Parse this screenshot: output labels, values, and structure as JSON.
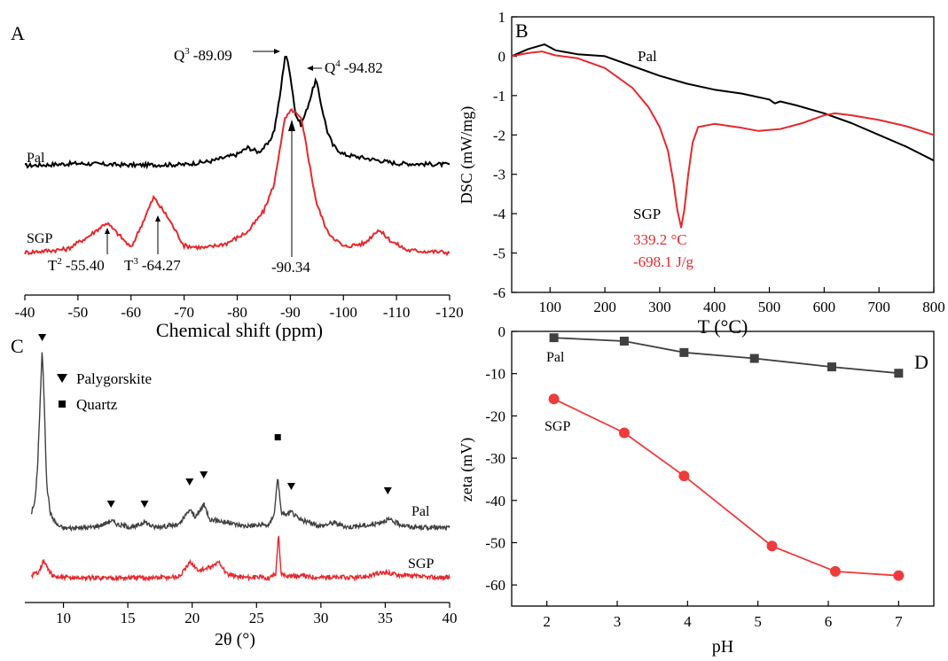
{
  "colors": {
    "black": "#000000",
    "red": "#e8282d",
    "darkgray": "#404040",
    "red_marker": "#ef3b3b"
  },
  "chart_data": [
    {
      "panel": "A",
      "type": "line",
      "xlabel": "Chemical shift (ppm)",
      "xlim": [
        -40,
        -120
      ],
      "x_reversed": true,
      "xticks": [
        -40,
        -50,
        -60,
        -70,
        -80,
        -90,
        -100,
        -110,
        -120
      ],
      "xtick_labels": [
        "-40",
        "-50",
        "-60",
        "-70",
        "-80",
        "-90",
        "-100",
        "-110",
        "-120"
      ],
      "series": [
        {
          "name": "Pal",
          "color": "#000000",
          "x": [
            -40,
            -50,
            -60,
            -70,
            -75,
            -80,
            -82,
            -84,
            -86,
            -87,
            -88,
            -89.09,
            -90,
            -91,
            -92,
            -93,
            -94.82,
            -96,
            -97,
            -98,
            -100,
            -105,
            -110,
            -120
          ],
          "y": [
            0,
            0.2,
            0.05,
            0.1,
            0.4,
            1.0,
            1.6,
            1.2,
            2.0,
            3.2,
            6.0,
            10.0,
            8.0,
            4.5,
            3.6,
            4.8,
            7.6,
            5.0,
            3.0,
            1.8,
            1.0,
            0.6,
            0.2,
            0.1
          ]
        },
        {
          "name": "SGP",
          "color": "#e8282d",
          "x": [
            -40,
            -48,
            -52,
            -55.4,
            -58,
            -60,
            -62,
            -64.27,
            -67,
            -70,
            -74,
            -78,
            -82,
            -85,
            -87,
            -88,
            -89,
            -90.34,
            -92,
            -93,
            -94,
            -95,
            -97,
            -100,
            -104,
            -106.5,
            -109,
            -112,
            -120
          ],
          "y": [
            0,
            0.3,
            1.4,
            2.6,
            1.4,
            0.4,
            2.4,
            4.8,
            3.0,
            0.6,
            0.4,
            0.8,
            1.8,
            3.6,
            6.0,
            9.0,
            11.6,
            12.4,
            11.6,
            9.4,
            6.6,
            4.2,
            1.8,
            0.5,
            0.8,
            2.0,
            1.0,
            0.2,
            0
          ]
        }
      ],
      "annotations": [
        {
          "sup": "3",
          "pre": "Q",
          "text": "-89.09"
        },
        {
          "sup": "4",
          "pre": "Q",
          "text": "-94.82"
        },
        {
          "sup": "2",
          "pre": "T",
          "text": "-55.40"
        },
        {
          "sup": "3",
          "pre": "T",
          "text": "-64.27"
        },
        {
          "text": "-90.34"
        }
      ]
    },
    {
      "panel": "B",
      "type": "line",
      "xlabel": "T (°C)",
      "ylabel": "DSC (mW/mg)",
      "xlim": [
        30,
        800
      ],
      "ylim": [
        -6,
        1
      ],
      "xticks": [
        100,
        200,
        300,
        400,
        500,
        600,
        700,
        800
      ],
      "yticks": [
        1,
        0,
        -1,
        -2,
        -3,
        -4,
        -5,
        -6
      ],
      "series": [
        {
          "name": "Pal",
          "color": "#000000",
          "x": [
            30,
            60,
            90,
            110,
            150,
            200,
            250,
            300,
            350,
            400,
            450,
            500,
            510,
            520,
            550,
            600,
            650,
            700,
            750,
            800
          ],
          "y": [
            0,
            0.18,
            0.3,
            0.15,
            0.05,
            0,
            -0.25,
            -0.5,
            -0.7,
            -0.85,
            -0.95,
            -1.1,
            -1.2,
            -1.15,
            -1.25,
            -1.45,
            -1.7,
            -2.0,
            -2.3,
            -2.65
          ]
        },
        {
          "name": "SGP",
          "color": "#e8282d",
          "x": [
            30,
            60,
            85,
            110,
            150,
            200,
            250,
            280,
            300,
            315,
            325,
            332,
            339.2,
            345,
            352,
            360,
            370,
            400,
            450,
            480,
            520,
            560,
            600,
            620,
            650,
            700,
            750,
            800
          ],
          "y": [
            0,
            0.08,
            0.12,
            0.02,
            -0.05,
            -0.3,
            -0.8,
            -1.3,
            -1.8,
            -2.4,
            -3.2,
            -3.9,
            -4.35,
            -3.9,
            -3.0,
            -2.2,
            -1.8,
            -1.72,
            -1.82,
            -1.9,
            -1.85,
            -1.7,
            -1.5,
            -1.45,
            -1.5,
            -1.62,
            -1.78,
            -2.0
          ]
        }
      ],
      "annotations": {
        "sgp_label": "SGP",
        "peak_temp": "339.2 °C",
        "peak_energy": "-698.1 J/g"
      }
    },
    {
      "panel": "C",
      "type": "line",
      "xlabel": "2θ (°)",
      "xlim": [
        7,
        40
      ],
      "xticks": [
        10,
        15,
        20,
        25,
        30,
        35,
        40
      ],
      "legend": {
        "triangle": "Palygorskite",
        "square": "Quartz"
      },
      "series": [
        {
          "name": "Pal",
          "color": "#404040",
          "x": [
            7.5,
            7.8,
            8.0,
            8.2,
            8.35,
            8.5,
            8.7,
            9.0,
            9.5,
            10,
            12,
            13,
            13.7,
            14.3,
            15.5,
            16.3,
            17,
            19,
            19.8,
            20.3,
            20.9,
            21.4,
            22,
            24,
            26,
            26.4,
            26.65,
            26.9,
            27.3,
            27.7,
            28.3,
            30,
            31,
            32,
            34,
            35.2,
            36,
            37,
            40
          ],
          "y": [
            1.4,
            2.5,
            6,
            12,
            16.5,
            12,
            4,
            1.3,
            0.3,
            0,
            0.05,
            0.3,
            0.7,
            0.3,
            0.05,
            0.6,
            0.1,
            0.3,
            1.7,
            1.0,
            2.2,
            0.8,
            0.7,
            0.2,
            0.3,
            1.5,
            4.9,
            1.5,
            1.2,
            1.5,
            0.8,
            0.2,
            0.5,
            0.1,
            0.3,
            0.8,
            0.4,
            0.1,
            0
          ]
        },
        {
          "name": "SGP",
          "color": "#e8282d",
          "x": [
            7.5,
            8.0,
            8.5,
            8.8,
            9.2,
            10,
            13,
            15,
            17,
            19,
            19.9,
            20.4,
            21,
            21.5,
            22.1,
            22.7,
            24,
            26,
            26.5,
            26.7,
            26.9,
            27.5,
            30,
            33,
            35,
            36,
            38,
            40
          ],
          "y": [
            0.2,
            0.5,
            1.6,
            0.8,
            0.1,
            0,
            0,
            0,
            0,
            0.1,
            1.5,
            0.7,
            0.8,
            1.0,
            1.5,
            0.3,
            0.05,
            0,
            0.4,
            4.2,
            0.4,
            0.2,
            0.05,
            0,
            0.5,
            0.3,
            0.05,
            0
          ]
        }
      ],
      "series_labels": [
        "Pal",
        "SGP"
      ]
    },
    {
      "panel": "D",
      "type": "line",
      "xlabel": "pH",
      "ylabel": "zeta (mV)",
      "xlim": [
        1.5,
        7.5
      ],
      "ylim": [
        -65,
        0
      ],
      "xticks": [
        2,
        3,
        4,
        5,
        6,
        7
      ],
      "yticks": [
        0,
        -10,
        -20,
        -30,
        -40,
        -50,
        -60
      ],
      "series": [
        {
          "name": "Pal",
          "color": "#404040",
          "marker": "square",
          "x": [
            2.1,
            3.1,
            3.95,
            4.95,
            6.05,
            7.0
          ],
          "y": [
            -1.5,
            -2.3,
            -5.0,
            -6.4,
            -8.4,
            -9.9
          ]
        },
        {
          "name": "SGP",
          "color": "#ef3b3b",
          "marker": "circle",
          "x": [
            2.1,
            3.1,
            3.95,
            5.2,
            6.1,
            7.0
          ],
          "y": [
            -16.0,
            -24.0,
            -34.2,
            -50.8,
            -56.8,
            -57.8
          ]
        }
      ]
    }
  ],
  "panel_labels": [
    "A",
    "B",
    "C",
    "D"
  ]
}
